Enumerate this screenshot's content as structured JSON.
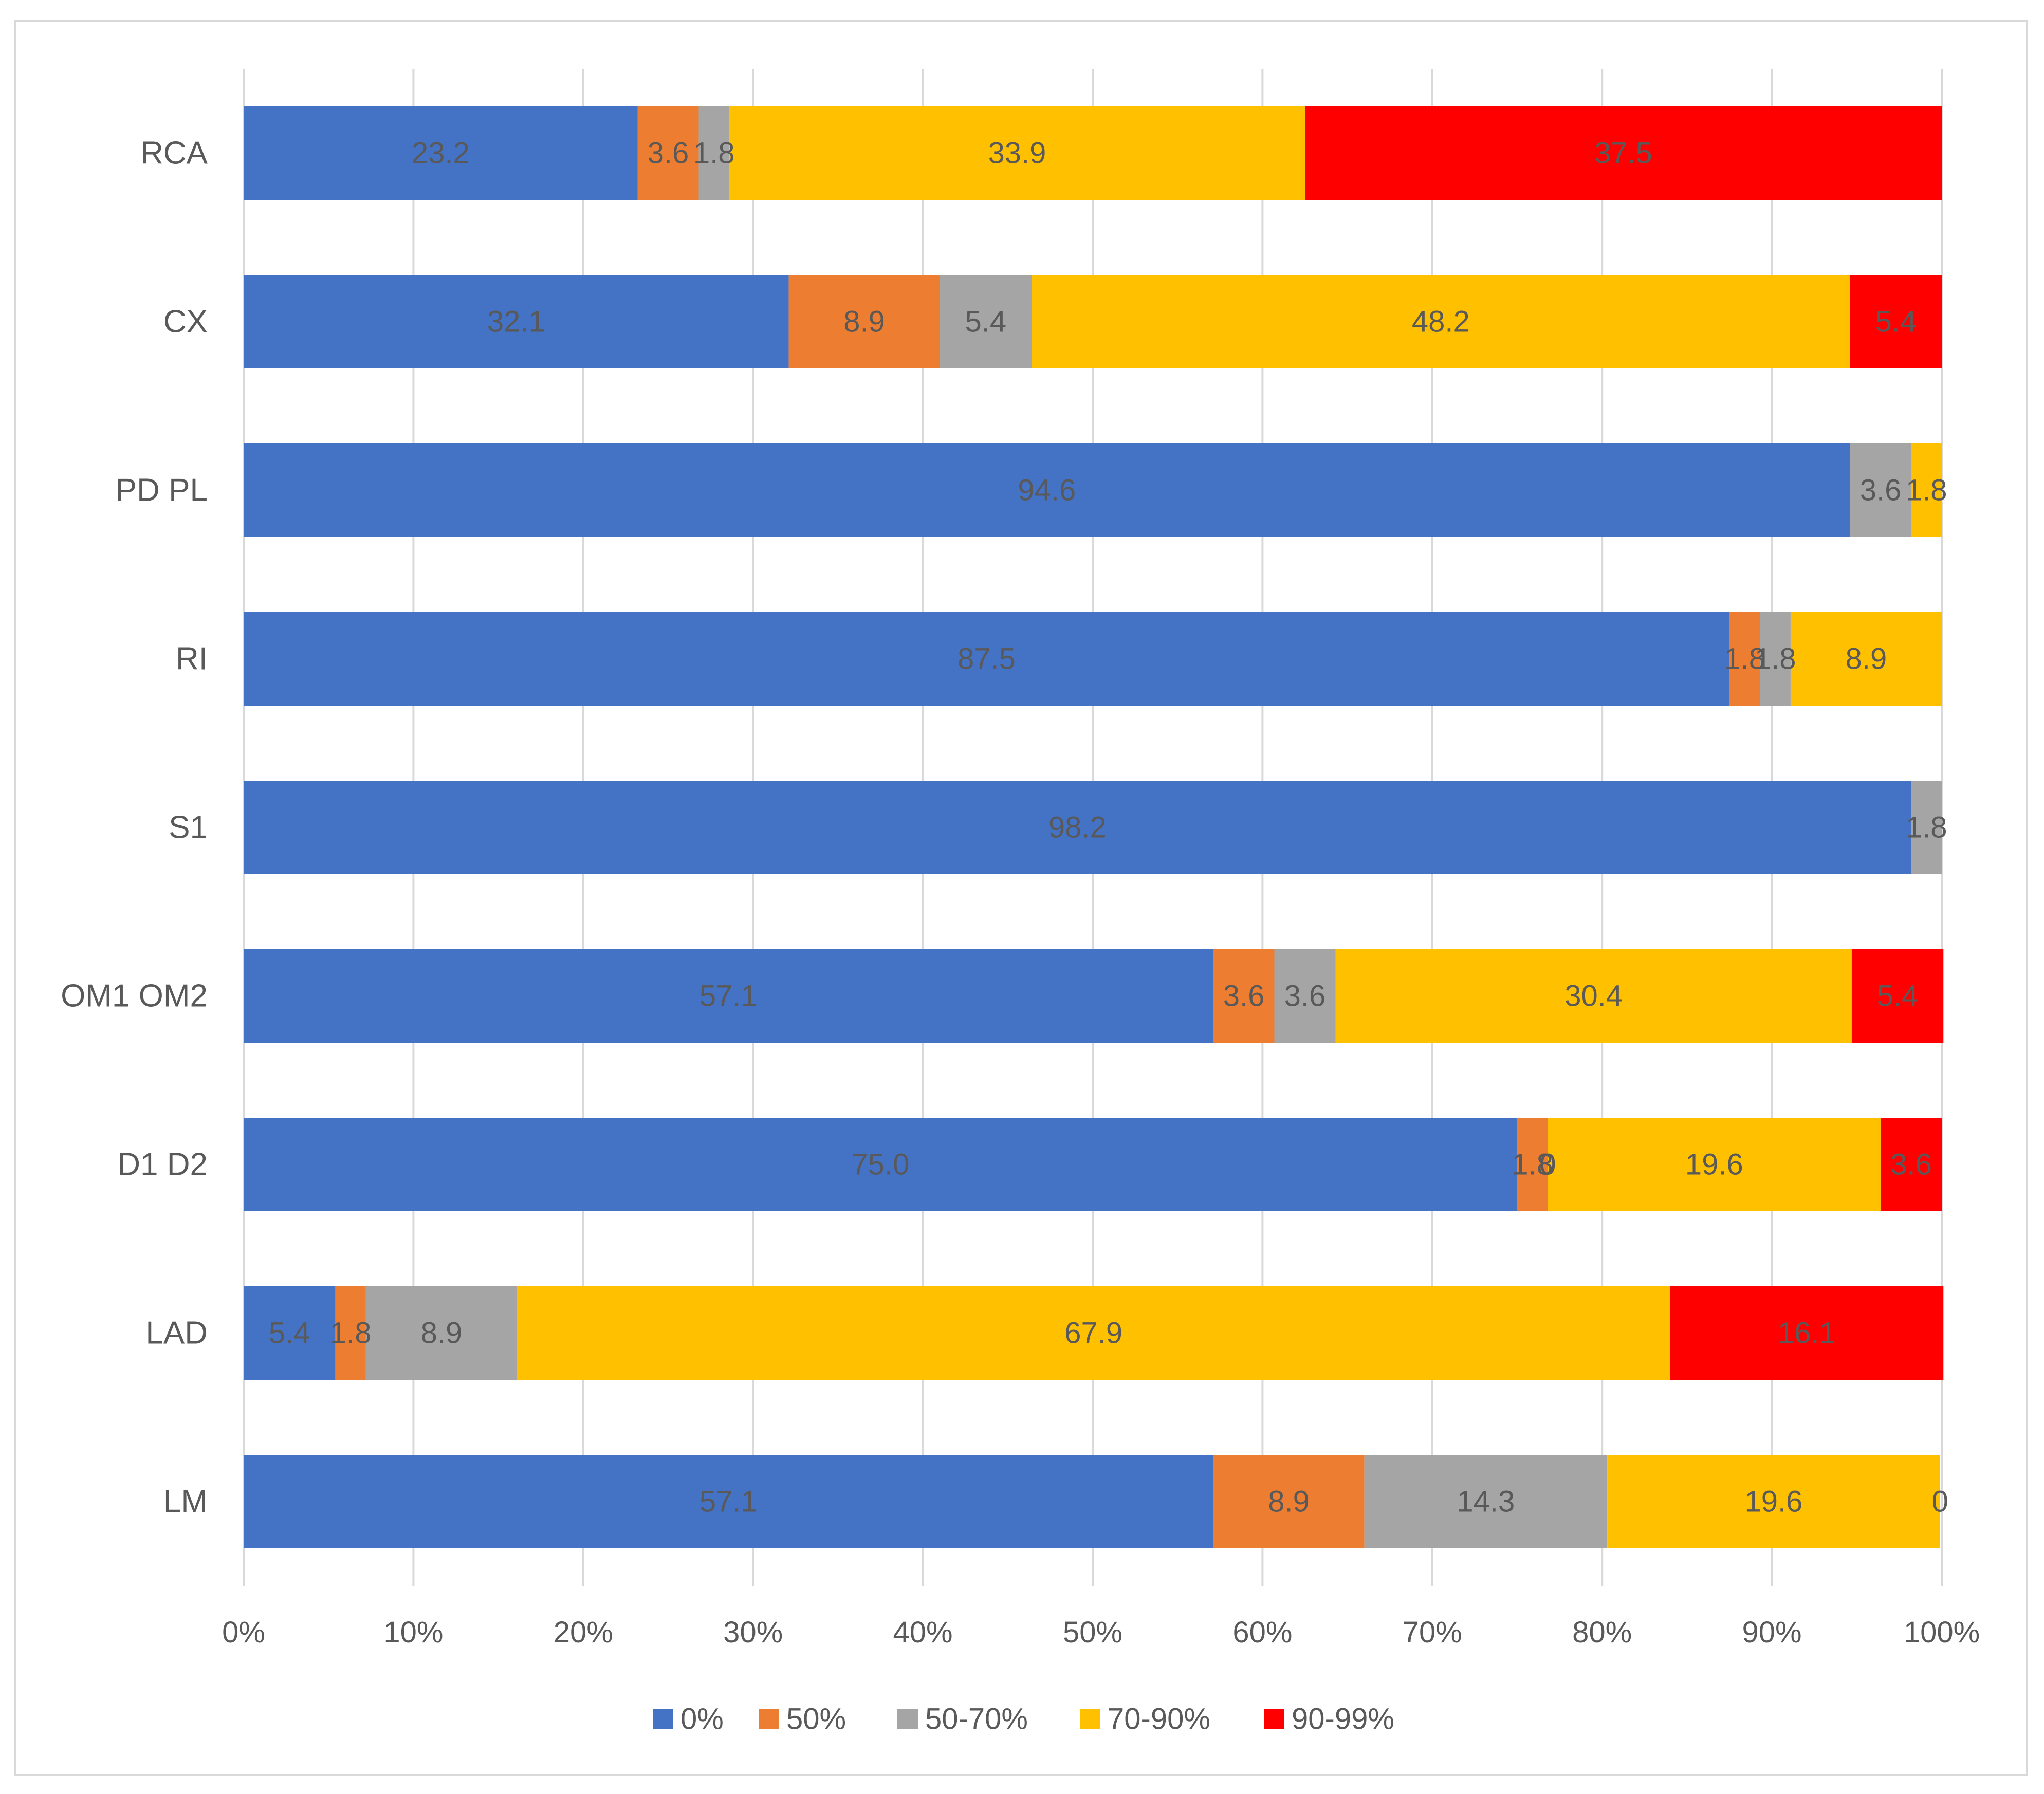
{
  "chart_data": {
    "type": "bar",
    "orientation": "horizontal",
    "stacked": "percent",
    "categories": [
      "RCA",
      "CX",
      "PD PL",
      "RI",
      "S1",
      "OM1 OM2",
      "D1 D2",
      "LAD",
      "LM"
    ],
    "series": [
      {
        "name": "0%",
        "color": "#4472C4",
        "values": [
          23.2,
          32.1,
          94.6,
          87.5,
          98.2,
          57.1,
          75.0,
          5.4,
          57.1
        ],
        "labels": [
          "23.2",
          "32.1",
          "94.6",
          "87.5",
          "98.2",
          "57.1",
          "75.0",
          "5.4",
          "57.1"
        ]
      },
      {
        "name": "50%",
        "color": "#ED7D31",
        "values": [
          3.6,
          8.9,
          0,
          1.8,
          0,
          3.6,
          1.8,
          1.8,
          8.9
        ],
        "labels": [
          "3.6",
          "8.9",
          "",
          "1.8",
          "",
          "3.6",
          "1.8",
          "1.8",
          "8.9"
        ]
      },
      {
        "name": "50-70%",
        "color": "#A5A5A5",
        "values": [
          1.8,
          5.4,
          3.6,
          1.8,
          1.8,
          3.6,
          0,
          8.9,
          14.3
        ],
        "labels": [
          "1.8",
          "5.4",
          "3.6",
          "1.8",
          "1.8",
          "3.6",
          "0",
          "8.9",
          "14.3"
        ]
      },
      {
        "name": "70-90%",
        "color": "#FFC000",
        "values": [
          33.9,
          48.2,
          1.8,
          8.9,
          0,
          30.4,
          19.6,
          67.9,
          19.6
        ],
        "labels": [
          "33.9",
          "48.2",
          "1.8",
          "8.9",
          "",
          "30.4",
          "19.6",
          "67.9",
          "19.6"
        ]
      },
      {
        "name": "90-99%",
        "color": "#FF0000",
        "values": [
          37.5,
          5.4,
          0,
          0,
          0,
          5.4,
          3.6,
          16.1,
          0
        ],
        "labels": [
          "37.5",
          "5.4",
          "",
          "",
          "",
          "5.4",
          "3.6",
          "16.1",
          "0"
        ]
      }
    ],
    "xlim": [
      0,
      100
    ],
    "xticks": [
      "0%",
      "10%",
      "20%",
      "30%",
      "40%",
      "50%",
      "60%",
      "70%",
      "80%",
      "90%",
      "100%"
    ],
    "grid": true,
    "legend_position": "bottom",
    "title": "",
    "xlabel": "",
    "ylabel": ""
  }
}
